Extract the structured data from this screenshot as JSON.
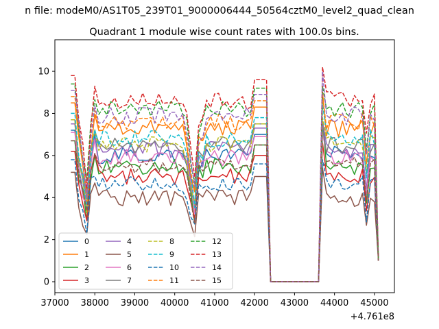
{
  "figure": {
    "suptitle": "n file: modeM0/AS1T05_239T01_9000006444_50564cztM0_level2_quad_clean",
    "title": "Quadrant 1 module wise count rates with 100.0s bins.",
    "offset_text": "+4.761e8"
  },
  "chart_data": {
    "type": "line",
    "title": "Quadrant 1 module wise count rates with 100.0s bins.",
    "xlabel": "",
    "ylabel": "",
    "xlim": [
      37000,
      45500
    ],
    "ylim": [
      -0.52,
      11.5
    ],
    "x_offset": 476100000,
    "xticks": [
      37000,
      38000,
      39000,
      40000,
      41000,
      42000,
      43000,
      44000,
      45000
    ],
    "yticks": [
      0,
      2,
      4,
      6,
      8,
      10
    ],
    "grid": false,
    "legend": {
      "placement": "lower-left",
      "columns": 4
    },
    "series": [
      {
        "name": "0",
        "color": "#1f77b4",
        "dash": "solid",
        "base": 6.0,
        "high": 7.5
      },
      {
        "name": "1",
        "color": "#ff7f0e",
        "dash": "solid",
        "base": 7.3,
        "high": 9.0
      },
      {
        "name": "2",
        "color": "#2ca02c",
        "dash": "solid",
        "base": 5.5,
        "high": 7.6
      },
      {
        "name": "3",
        "color": "#d62728",
        "dash": "solid",
        "base": 5.0,
        "high": 6.6
      },
      {
        "name": "4",
        "color": "#9467bd",
        "dash": "solid",
        "base": 6.3,
        "high": 7.6
      },
      {
        "name": "5",
        "color": "#8c564b",
        "dash": "solid",
        "base": 4.0,
        "high": 5.4
      },
      {
        "name": "6",
        "color": "#e377c2",
        "dash": "solid",
        "base": 5.9,
        "high": 7.0
      },
      {
        "name": "7",
        "color": "#7f7f7f",
        "dash": "solid",
        "base": 6.5,
        "high": 7.3
      },
      {
        "name": "8",
        "color": "#bcbd22",
        "dash": "dash",
        "base": 6.5,
        "high": 7.8
      },
      {
        "name": "9",
        "color": "#17becf",
        "dash": "dash",
        "base": 6.8,
        "high": 8.4
      },
      {
        "name": "10",
        "color": "#1f77b4",
        "dash": "dash",
        "base": 4.6,
        "high": 5.8
      },
      {
        "name": "11",
        "color": "#ff7f0e",
        "dash": "dash",
        "base": 7.6,
        "high": 9.0
      },
      {
        "name": "12",
        "color": "#2ca02c",
        "dash": "dash",
        "base": 8.2,
        "high": 9.3
      },
      {
        "name": "13",
        "color": "#d62728",
        "dash": "dash",
        "base": 8.6,
        "high": 10.2
      },
      {
        "name": "14",
        "color": "#9467bd",
        "dash": "dash",
        "base": 7.9,
        "high": 10.0
      },
      {
        "name": "15",
        "color": "#8c564b",
        "dash": "dash",
        "base": 5.5,
        "high": 5.4
      }
    ],
    "profile": {
      "x_start": 37400,
      "x_step": 100,
      "x_gap_start": 42400,
      "x_gap_end": 43600,
      "x_end": 45100,
      "dip_centers": [
        37800,
        40500
      ],
      "gap_value": 0.0
    }
  }
}
